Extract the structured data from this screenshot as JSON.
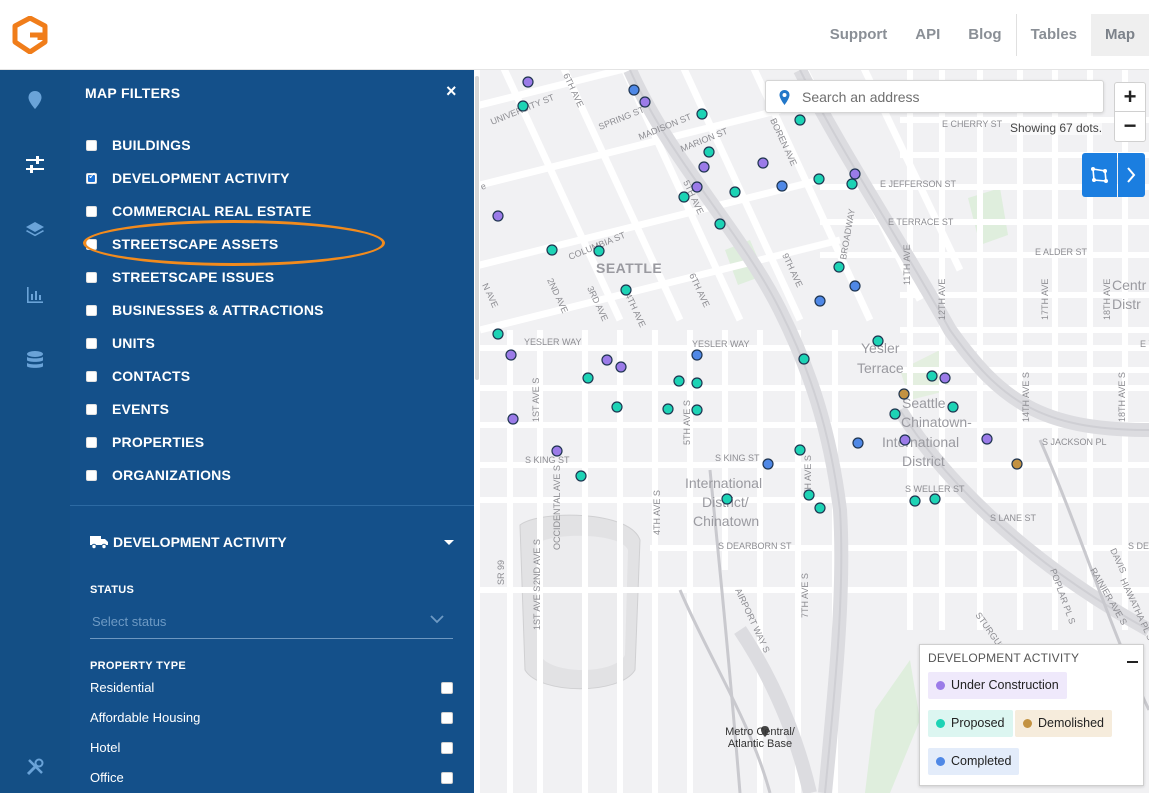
{
  "nav": {
    "logo_icon": "g-logo-icon",
    "links": [
      "Support",
      "API",
      "Blog",
      "Tables",
      "Map"
    ],
    "active": "Map"
  },
  "rail": {
    "icons": [
      "location-pin-icon",
      "filter-sliders-icon",
      "layers-icon",
      "bar-chart-icon",
      "database-icon",
      "tools-icon"
    ]
  },
  "filters": {
    "title": "MAP FILTERS",
    "close": "×",
    "layers": [
      {
        "label": "BUILDINGS",
        "checked": false
      },
      {
        "label": "DEVELOPMENT ACTIVITY",
        "checked": true
      },
      {
        "label": "COMMERCIAL REAL ESTATE",
        "checked": false
      },
      {
        "label": "STREETSCAPE ASSETS",
        "checked": false
      },
      {
        "label": "STREETSCAPE ISSUES",
        "checked": false
      },
      {
        "label": "BUSINESSES & ATTRACTIONS",
        "checked": false
      },
      {
        "label": "UNITS",
        "checked": false
      },
      {
        "label": "CONTACTS",
        "checked": false
      },
      {
        "label": "EVENTS",
        "checked": false
      },
      {
        "label": "PROPERTIES",
        "checked": false
      },
      {
        "label": "ORGANIZATIONS",
        "checked": false
      }
    ],
    "section": {
      "title": "DEVELOPMENT ACTIVITY",
      "icon": "truck-icon",
      "status_label": "STATUS",
      "status_placeholder": "Select status",
      "property_type_label": "PROPERTY TYPE",
      "property_types": [
        "Residential",
        "Affordable Housing",
        "Hotel",
        "Office"
      ]
    }
  },
  "map": {
    "search_placeholder": "Search an address",
    "zoom_in": "+",
    "zoom_out": "−",
    "dots_count": "Showing 67 dots.",
    "labels": {
      "seattle": "SEATTLE",
      "yesler_terrace": "Yesler Terrace",
      "chinatown_id": "Seattle Chinatown-International District",
      "intl_district": "International District/ Chinatown",
      "central_district": "Central District",
      "metro": "Metro Central/ Atlantic Base"
    },
    "streets": [
      "UNIVERSITY ST",
      "SPRING ST",
      "MADISON ST",
      "MARION ST",
      "COLUMBIA ST",
      "YESLER WAY",
      "S KING ST",
      "S DEARBORN ST",
      "S WELLER ST",
      "S LANE ST",
      "S JACKSON PL",
      "E JEFFERSON ST",
      "E TERRACE ST",
      "E ALDER ST",
      "E CHERRY ST",
      "BOREN AVE",
      "9TH AVE",
      "BROADWAY",
      "12TH AVE",
      "14TH AVE S",
      "18TH AVE S",
      "5TH AVE S",
      "7TH AVE S",
      "AIRPORT WAY S",
      "OCCIDENTAL AVE S",
      "SR 99",
      "1ST AVE S",
      "2ND AVE",
      "3RD AVE",
      "4TH AVE",
      "6TH AVE",
      "5TH AVE",
      "11TH AVE",
      "E YE",
      "DAVIS",
      "STURGUS",
      "POPLAR PL S",
      "RAINIER AVE S",
      "HIAWATHA PL S",
      "17TH AVE",
      "18TH AVE",
      "2ND AVE S",
      "3RD AVE S"
    ],
    "legend": {
      "title": "DEVELOPMENT ACTIVITY",
      "minimize": "−",
      "items": [
        {
          "label": "Under Construction",
          "color": "#9b7be8",
          "bg": "#efe9fb"
        },
        {
          "label": "Proposed",
          "color": "#1dd3b5",
          "bg": "#dcf6f1"
        },
        {
          "label": "Demolished",
          "color": "#c39242",
          "bg": "#f6ecdc"
        },
        {
          "label": "Completed",
          "color": "#4f88e6",
          "bg": "#e3ecfa"
        }
      ]
    },
    "dot_colors": {
      "under_construction": "#9b7be8",
      "proposed": "#1dd3b5",
      "demolished": "#c39242",
      "completed": "#4f88e6"
    }
  }
}
